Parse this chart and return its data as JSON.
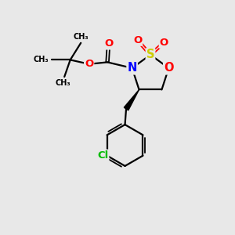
{
  "bg_color": "#e8e8e8",
  "atom_colors": {
    "O": "#ff0000",
    "N": "#0000ff",
    "S": "#cccc00",
    "Cl": "#00bb00",
    "C": "#000000"
  },
  "bond_color": "#000000",
  "figsize": [
    3.0,
    3.0
  ],
  "dpi": 100,
  "xlim": [
    0,
    10
  ],
  "ylim": [
    0,
    10
  ]
}
